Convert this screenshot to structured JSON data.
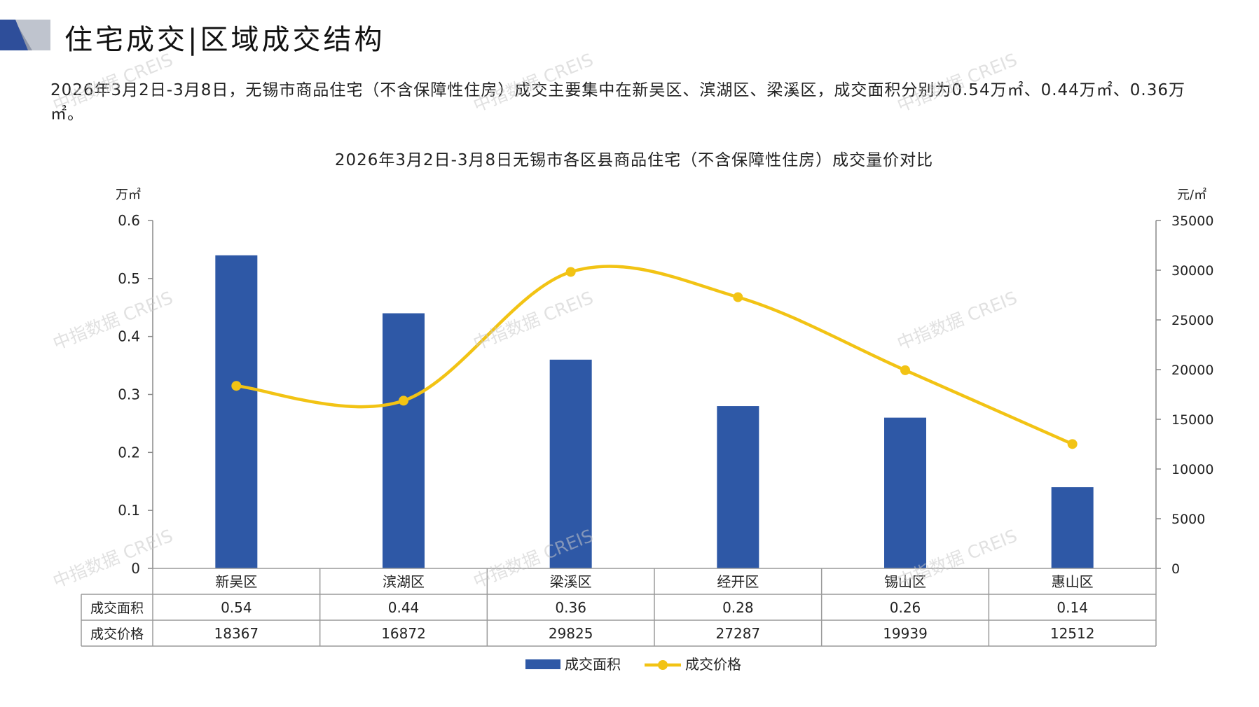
{
  "header": {
    "title": "住宅成交|区域成交结构",
    "description": "2026年3月2日-3月8日，无锡市商品住宅（不含保障性住房）成交主要集中在新吴区、滨湖区、梁溪区，成交面积分别为0.54万㎡、0.44万㎡、0.36万㎡。"
  },
  "watermark": "中指数据 CREIS",
  "colors": {
    "bar": "#2E58A6",
    "line": "#F2C314",
    "grid": "#888888",
    "logo_dark": "#2E4E9A",
    "logo_light": "#B8BDC8"
  },
  "chart_data": {
    "type": "bar+line",
    "title": "2026年3月2日-3月8日无锡市各区县商品住宅（不含保障性住房）成交量价对比",
    "categories": [
      "新吴区",
      "滨湖区",
      "梁溪区",
      "经开区",
      "锡山区",
      "惠山区"
    ],
    "series": [
      {
        "name": "成交面积",
        "type": "bar",
        "axis": "left",
        "values": [
          0.54,
          0.44,
          0.36,
          0.28,
          0.26,
          0.14
        ],
        "labels": [
          "0.54",
          "0.44",
          "0.36",
          "0.28",
          "0.26",
          "0.14"
        ]
      },
      {
        "name": "成交价格",
        "type": "line",
        "axis": "right",
        "values": [
          18367,
          16872,
          29825,
          27287,
          19939,
          12512
        ],
        "labels": [
          "18367",
          "16872",
          "29825",
          "27287",
          "19939",
          "12512"
        ]
      }
    ],
    "left_axis": {
      "unit": "万㎡",
      "min": 0,
      "max": 0.6,
      "ticks": [
        "0",
        "0.1",
        "0.2",
        "0.3",
        "0.4",
        "0.5",
        "0.6"
      ]
    },
    "right_axis": {
      "unit": "元/㎡",
      "min": 0,
      "max": 35000,
      "ticks": [
        "0",
        "5000",
        "10000",
        "15000",
        "20000",
        "25000",
        "30000",
        "35000"
      ]
    },
    "legend_position": "bottom"
  }
}
